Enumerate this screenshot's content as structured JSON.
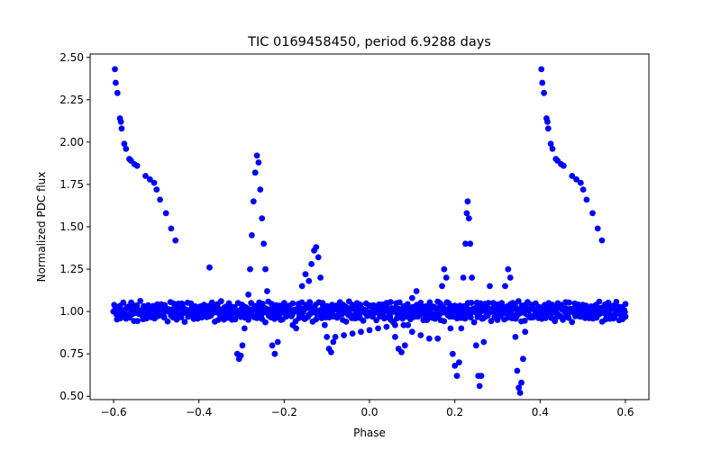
{
  "chart_data": {
    "type": "scatter",
    "title": "TIC 0169458450, period 6.9288 days",
    "xlabel": "Phase",
    "ylabel": "Normalized PDC flux",
    "xlim": [
      -0.655,
      0.655
    ],
    "ylim": [
      0.48,
      2.52
    ],
    "xticks": [
      -0.6,
      -0.4,
      -0.2,
      0.0,
      0.2,
      0.4,
      0.6
    ],
    "xtick_labels": [
      "−0.6",
      "−0.4",
      "−0.2",
      "0.0",
      "0.2",
      "0.4",
      "0.6"
    ],
    "yticks": [
      0.5,
      0.75,
      1.0,
      1.25,
      1.5,
      1.75,
      2.0,
      2.25,
      2.5
    ],
    "ytick_labels": [
      "0.50",
      "0.75",
      "1.00",
      "1.25",
      "1.50",
      "1.75",
      "2.00",
      "2.25",
      "2.50"
    ],
    "grid": false,
    "legend": "none",
    "marker_color": "#0000ff",
    "series": [
      {
        "points": [
          [
            -0.597,
            2.43
          ],
          [
            -0.595,
            2.35
          ],
          [
            -0.591,
            2.29
          ],
          [
            -0.585,
            2.14
          ],
          [
            -0.583,
            2.12
          ],
          [
            -0.581,
            2.08
          ],
          [
            -0.575,
            1.99
          ],
          [
            -0.571,
            1.96
          ],
          [
            -0.563,
            1.9
          ],
          [
            -0.559,
            1.89
          ],
          [
            -0.551,
            1.87
          ],
          [
            -0.545,
            1.86
          ],
          [
            -0.525,
            1.8
          ],
          [
            -0.515,
            1.78
          ],
          [
            -0.505,
            1.76
          ],
          [
            -0.499,
            1.72
          ],
          [
            -0.491,
            1.66
          ],
          [
            -0.477,
            1.58
          ],
          [
            -0.465,
            1.49
          ],
          [
            -0.455,
            1.42
          ],
          [
            -0.375,
            1.26
          ],
          [
            -0.6,
            1.0
          ],
          [
            -0.585,
            1.03
          ],
          [
            -0.57,
            0.98
          ],
          [
            -0.555,
            1.02
          ],
          [
            -0.54,
            0.99
          ],
          [
            -0.52,
            1.03
          ],
          [
            -0.5,
            0.97
          ],
          [
            -0.48,
            1.02
          ],
          [
            -0.46,
            0.99
          ],
          [
            -0.44,
            1.04
          ],
          [
            -0.42,
            1.0
          ],
          [
            -0.4,
            0.98
          ],
          [
            -0.38,
            1.01
          ],
          [
            -0.36,
            1.03
          ],
          [
            -0.34,
            0.99
          ],
          [
            -0.32,
            1.0
          ],
          [
            -0.31,
            0.75
          ],
          [
            -0.306,
            0.72
          ],
          [
            -0.302,
            0.74
          ],
          [
            -0.298,
            0.8
          ],
          [
            -0.293,
            0.9
          ],
          [
            -0.288,
            1.0
          ],
          [
            -0.284,
            1.1
          ],
          [
            -0.28,
            1.25
          ],
          [
            -0.276,
            1.45
          ],
          [
            -0.272,
            1.65
          ],
          [
            -0.268,
            1.82
          ],
          [
            -0.264,
            1.92
          ],
          [
            -0.26,
            1.88
          ],
          [
            -0.256,
            1.72
          ],
          [
            -0.252,
            1.55
          ],
          [
            -0.248,
            1.4
          ],
          [
            -0.244,
            1.25
          ],
          [
            -0.24,
            1.12
          ],
          [
            -0.235,
            0.98
          ],
          [
            -0.228,
            0.8
          ],
          [
            -0.222,
            0.75
          ],
          [
            -0.215,
            0.82
          ],
          [
            -0.208,
            0.95
          ],
          [
            -0.2,
            1.05
          ],
          [
            -0.19,
            1.0
          ],
          [
            -0.18,
            0.92
          ],
          [
            -0.172,
            0.9
          ],
          [
            -0.165,
            1.02
          ],
          [
            -0.158,
            1.15
          ],
          [
            -0.15,
            1.22
          ],
          [
            -0.142,
            1.18
          ],
          [
            -0.136,
            1.28
          ],
          [
            -0.13,
            1.36
          ],
          [
            -0.125,
            1.38
          ],
          [
            -0.12,
            1.32
          ],
          [
            -0.115,
            1.2
          ],
          [
            -0.11,
            1.05
          ],
          [
            -0.105,
            0.92
          ],
          [
            -0.1,
            0.85
          ],
          [
            -0.095,
            0.78
          ],
          [
            -0.09,
            0.76
          ],
          [
            -0.085,
            0.82
          ],
          [
            -0.08,
            0.85
          ],
          [
            -0.06,
            0.86
          ],
          [
            -0.04,
            0.87
          ],
          [
            -0.02,
            0.88
          ],
          [
            0.0,
            0.89
          ],
          [
            0.02,
            0.9
          ],
          [
            0.04,
            0.91
          ],
          [
            0.06,
            0.92
          ],
          [
            0.08,
            0.92
          ],
          [
            0.1,
            0.88
          ],
          [
            0.12,
            0.86
          ],
          [
            0.14,
            0.84
          ],
          [
            0.16,
            0.84
          ],
          [
            0.04,
            1.05
          ],
          [
            0.05,
            0.95
          ],
          [
            0.06,
            0.85
          ],
          [
            0.068,
            0.78
          ],
          [
            0.075,
            0.76
          ],
          [
            0.083,
            0.8
          ],
          [
            0.09,
            0.92
          ],
          [
            0.1,
            1.08
          ],
          [
            0.11,
            1.12
          ],
          [
            0.12,
            1.02
          ],
          [
            0.13,
            0.98
          ],
          [
            0.165,
            1.05
          ],
          [
            0.17,
            1.15
          ],
          [
            0.175,
            1.25
          ],
          [
            0.18,
            1.2
          ],
          [
            0.185,
            1.05
          ],
          [
            0.19,
            0.9
          ],
          [
            0.195,
            0.75
          ],
          [
            0.2,
            0.68
          ],
          [
            0.205,
            0.62
          ],
          [
            0.21,
            0.7
          ],
          [
            0.215,
            0.9
          ],
          [
            0.22,
            1.2
          ],
          [
            0.225,
            1.4
          ],
          [
            0.228,
            1.58
          ],
          [
            0.23,
            1.65
          ],
          [
            0.233,
            1.55
          ],
          [
            0.236,
            1.4
          ],
          [
            0.24,
            1.2
          ],
          [
            0.245,
            1.0
          ],
          [
            0.25,
            0.8
          ],
          [
            0.255,
            0.62
          ],
          [
            0.258,
            0.56
          ],
          [
            0.262,
            0.62
          ],
          [
            0.268,
            0.82
          ],
          [
            0.275,
            1.02
          ],
          [
            0.282,
            1.15
          ],
          [
            0.29,
            1.05
          ],
          [
            0.3,
            0.95
          ],
          [
            0.31,
            1.05
          ],
          [
            0.318,
            1.15
          ],
          [
            0.325,
            1.25
          ],
          [
            0.33,
            1.2
          ],
          [
            0.336,
            1.05
          ],
          [
            0.342,
            0.85
          ],
          [
            0.346,
            0.65
          ],
          [
            0.35,
            0.55
          ],
          [
            0.353,
            0.52
          ],
          [
            0.356,
            0.58
          ],
          [
            0.36,
            0.72
          ],
          [
            0.365,
            0.88
          ],
          [
            0.372,
            1.0
          ],
          [
            -0.07,
            1.02
          ],
          [
            -0.05,
            0.98
          ],
          [
            -0.03,
            1.03
          ],
          [
            -0.01,
            0.99
          ],
          [
            0.01,
            1.02
          ],
          [
            0.03,
            0.97
          ],
          [
            0.145,
            1.03
          ],
          [
            0.155,
            0.99
          ],
          [
            0.255,
            1.02
          ],
          [
            0.38,
            1.04
          ],
          [
            0.4,
            0.98
          ],
          [
            0.42,
            1.03
          ],
          [
            0.44,
            0.97
          ],
          [
            0.46,
            1.02
          ],
          [
            0.48,
            0.99
          ],
          [
            0.5,
            1.04
          ],
          [
            0.52,
            0.98
          ],
          [
            0.54,
            1.02
          ],
          [
            0.56,
            0.96
          ],
          [
            0.58,
            1.03
          ],
          [
            0.59,
            0.98
          ],
          [
            0.6,
            0.97
          ],
          [
            0.403,
            2.43
          ],
          [
            0.405,
            2.35
          ],
          [
            0.409,
            2.29
          ],
          [
            0.415,
            2.14
          ],
          [
            0.417,
            2.12
          ],
          [
            0.419,
            2.08
          ],
          [
            0.425,
            1.99
          ],
          [
            0.429,
            1.96
          ],
          [
            0.437,
            1.9
          ],
          [
            0.441,
            1.89
          ],
          [
            0.449,
            1.87
          ],
          [
            0.455,
            1.86
          ],
          [
            0.475,
            1.8
          ],
          [
            0.485,
            1.78
          ],
          [
            0.495,
            1.76
          ],
          [
            0.501,
            1.72
          ],
          [
            0.509,
            1.66
          ],
          [
            0.523,
            1.58
          ],
          [
            0.535,
            1.49
          ],
          [
            0.545,
            1.42
          ]
        ]
      }
    ]
  }
}
